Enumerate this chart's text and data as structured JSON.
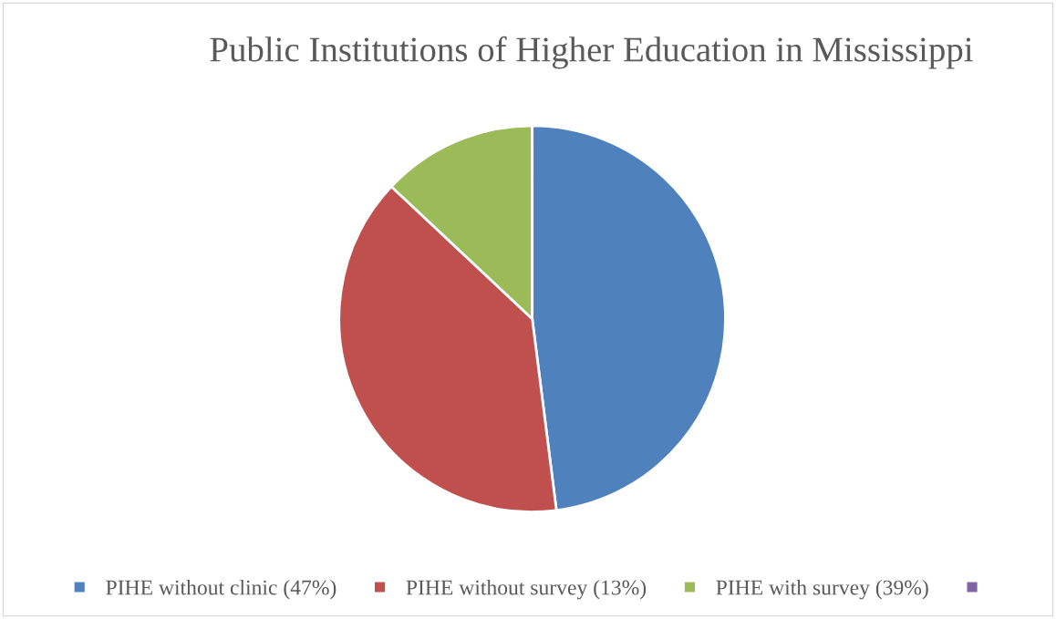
{
  "chart_data": {
    "type": "pie",
    "title": "Public Institutions of Higher Education in Mississippi",
    "categories": [
      "PIHE without clinic (47%)",
      "PIHE without survey (13%)",
      "PIHE with survey (39%)",
      null
    ],
    "values": [
      48,
      39,
      13,
      0
    ],
    "colors": [
      "#4f81bd",
      "#c0504d",
      "#9bbb59",
      "#8064a2"
    ],
    "legend": "bottom"
  }
}
